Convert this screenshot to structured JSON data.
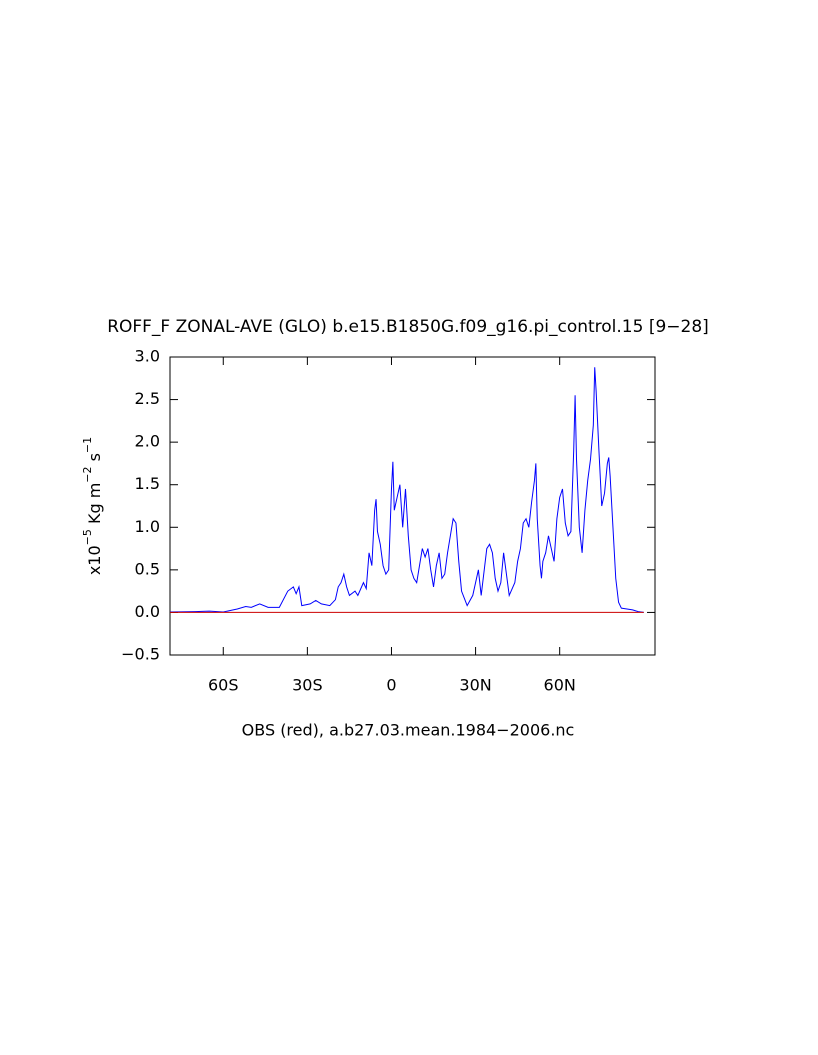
{
  "chart_data": {
    "type": "line",
    "title": "ROFF_F ZONAL-AVE (GLO) b.e15.B1850G.f09_g16.pi_control.15 [9−28]",
    "ylabel": [
      "x10",
      "−5",
      " Kg m",
      "−2",
      " s",
      "−1"
    ],
    "xlabel": "OBS (red), a.b27.03.mean.1984−2006.nc",
    "xlim": [
      -79,
      94
    ],
    "ylim": [
      -0.5,
      3.0
    ],
    "xticks": [
      {
        "value": -60,
        "label": "60S"
      },
      {
        "value": -30,
        "label": "30S"
      },
      0,
      {
        "value": 30,
        "label": "30N"
      },
      {
        "value": 60,
        "label": "60N"
      }
    ],
    "yticks": [
      {
        "value": -0.5,
        "label": "−0.5"
      },
      {
        "value": 0,
        "label": "0.0"
      },
      0.5,
      {
        "value": 1,
        "label": "1.0"
      },
      1.5,
      {
        "value": 2,
        "label": "2.0"
      },
      2.5,
      {
        "value": 3,
        "label": "3.0"
      }
    ],
    "series": [
      {
        "color": "#0000ff",
        "x": [
          -79,
          -70,
          -65,
          -60,
          -55,
          -52,
          -50,
          -47,
          -44,
          -40,
          -37,
          -35,
          -34,
          -33,
          -32,
          -29,
          -27,
          -25,
          -22,
          -20,
          -19,
          -18,
          -17,
          -16,
          -15,
          -13,
          -12,
          -10,
          -9,
          -8,
          -7,
          -6,
          -5.5,
          -5,
          -4,
          -3,
          -2,
          -1,
          0,
          0.5,
          1,
          2,
          3,
          4,
          5,
          6,
          7,
          8,
          9,
          10,
          11,
          12,
          13,
          14,
          15,
          16,
          17,
          18,
          19,
          20,
          21,
          22,
          23,
          24,
          25,
          27,
          29,
          31,
          32,
          34,
          35,
          36,
          37,
          38,
          39,
          40,
          41,
          42,
          44,
          45,
          46,
          47,
          48,
          49,
          50,
          51,
          51.5,
          52,
          53,
          53.5,
          54,
          55,
          56,
          57,
          58,
          59,
          60,
          61,
          62,
          63,
          64,
          65,
          65.5,
          66,
          67,
          68,
          69,
          70,
          71,
          72,
          72.5,
          73,
          74,
          75,
          76,
          77,
          77.5,
          78,
          79,
          80,
          81,
          82,
          84,
          86,
          88,
          90
        ],
        "values": [
          0.005,
          0.01,
          0.015,
          0.005,
          0.04,
          0.07,
          0.06,
          0.1,
          0.06,
          0.06,
          0.25,
          0.3,
          0.22,
          0.3,
          0.08,
          0.1,
          0.14,
          0.1,
          0.08,
          0.15,
          0.3,
          0.35,
          0.45,
          0.3,
          0.2,
          0.25,
          0.2,
          0.35,
          0.28,
          0.7,
          0.55,
          1.2,
          1.33,
          0.95,
          0.8,
          0.55,
          0.45,
          0.5,
          1.45,
          1.77,
          1.2,
          1.35,
          1.5,
          1.0,
          1.45,
          0.9,
          0.5,
          0.4,
          0.35,
          0.55,
          0.75,
          0.65,
          0.75,
          0.5,
          0.3,
          0.55,
          0.7,
          0.4,
          0.45,
          0.7,
          0.9,
          1.1,
          1.05,
          0.6,
          0.25,
          0.08,
          0.2,
          0.5,
          0.2,
          0.75,
          0.8,
          0.7,
          0.4,
          0.25,
          0.35,
          0.7,
          0.45,
          0.2,
          0.35,
          0.6,
          0.75,
          1.05,
          1.1,
          1.0,
          1.3,
          1.55,
          1.75,
          1.1,
          0.55,
          0.4,
          0.6,
          0.7,
          0.9,
          0.75,
          0.6,
          1.1,
          1.35,
          1.45,
          1.05,
          0.9,
          0.95,
          1.9,
          2.55,
          1.8,
          1.0,
          0.7,
          1.2,
          1.55,
          1.8,
          2.2,
          2.88,
          2.6,
          1.9,
          1.25,
          1.4,
          1.75,
          1.82,
          1.6,
          1.0,
          0.4,
          0.12,
          0.05,
          0.04,
          0.03,
          0.01,
          0.0
        ]
      },
      {
        "color": "#cc0000",
        "x": [
          -79,
          90
        ],
        "values": [
          0,
          0
        ]
      }
    ]
  }
}
